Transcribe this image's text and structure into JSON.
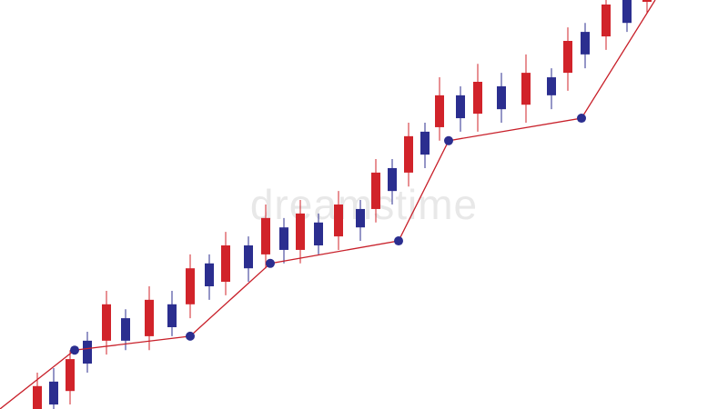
{
  "watermark": "dreamstime",
  "colors": {
    "up": "#d1232a",
    "down": "#2b2e8f",
    "trend_line": "#c8202a",
    "trend_point": "#2b2e8f"
  },
  "chart_data": {
    "type": "candlestick",
    "title": "",
    "xlabel": "",
    "ylabel": "",
    "ylim": [
      0,
      100
    ],
    "grid": false,
    "candles": [
      {
        "x": 41,
        "color": "up",
        "open": 0,
        "close": 5.6,
        "high": 8.9,
        "low": 0
      },
      {
        "x": 59,
        "color": "down",
        "open": 6.7,
        "close": 1.1,
        "high": 10,
        "low": 0
      },
      {
        "x": 77,
        "color": "up",
        "open": 4.4,
        "close": 12.2,
        "high": 14.4,
        "low": 1.1
      },
      {
        "x": 96,
        "color": "down",
        "open": 16.7,
        "close": 11.1,
        "high": 18.9,
        "low": 8.9
      },
      {
        "x": 117,
        "color": "up",
        "open": 16.7,
        "close": 25.6,
        "high": 28.9,
        "low": 13.3
      },
      {
        "x": 138,
        "color": "down",
        "open": 22.2,
        "close": 16.7,
        "high": 24.4,
        "low": 14.4
      },
      {
        "x": 164,
        "color": "up",
        "open": 17.8,
        "close": 26.7,
        "high": 30,
        "low": 14.4
      },
      {
        "x": 189,
        "color": "down",
        "open": 25.6,
        "close": 20,
        "high": 28.9,
        "low": 17.8
      },
      {
        "x": 209,
        "color": "up",
        "open": 25.6,
        "close": 34.4,
        "high": 37.8,
        "low": 22.2
      },
      {
        "x": 230,
        "color": "down",
        "open": 35.6,
        "close": 30,
        "high": 37.8,
        "low": 26.7
      },
      {
        "x": 248,
        "color": "up",
        "open": 31.1,
        "close": 40,
        "high": 43.3,
        "low": 27.8
      },
      {
        "x": 273,
        "color": "down",
        "open": 40,
        "close": 34.4,
        "high": 42.2,
        "low": 31.1
      },
      {
        "x": 292,
        "color": "up",
        "open": 37.8,
        "close": 46.7,
        "high": 50,
        "low": 34.4
      },
      {
        "x": 312,
        "color": "down",
        "open": 44.4,
        "close": 38.9,
        "high": 46.7,
        "low": 35.6
      },
      {
        "x": 330,
        "color": "up",
        "open": 38.9,
        "close": 47.8,
        "high": 51.1,
        "low": 35.6
      },
      {
        "x": 350,
        "color": "down",
        "open": 45.6,
        "close": 40,
        "high": 47.8,
        "low": 37.8
      },
      {
        "x": 372,
        "color": "up",
        "open": 42.2,
        "close": 50,
        "high": 53.3,
        "low": 38.9
      },
      {
        "x": 396,
        "color": "down",
        "open": 48.9,
        "close": 44.4,
        "high": 51.1,
        "low": 41.1
      },
      {
        "x": 413,
        "color": "up",
        "open": 48.9,
        "close": 57.8,
        "high": 61.1,
        "low": 45.6
      },
      {
        "x": 431,
        "color": "down",
        "open": 58.9,
        "close": 53.3,
        "high": 61.1,
        "low": 50
      },
      {
        "x": 449,
        "color": "up",
        "open": 57.8,
        "close": 66.7,
        "high": 70,
        "low": 54.4
      },
      {
        "x": 467,
        "color": "down",
        "open": 67.8,
        "close": 62.2,
        "high": 70,
        "low": 58.9
      },
      {
        "x": 483,
        "color": "up",
        "open": 68.9,
        "close": 76.7,
        "high": 81.1,
        "low": 65.6
      },
      {
        "x": 506,
        "color": "down",
        "open": 76.7,
        "close": 71.1,
        "high": 78.9,
        "low": 67.8
      },
      {
        "x": 525,
        "color": "up",
        "open": 72.2,
        "close": 80,
        "high": 84.4,
        "low": 67.8
      },
      {
        "x": 551,
        "color": "down",
        "open": 78.9,
        "close": 73.3,
        "high": 82.2,
        "low": 70
      },
      {
        "x": 578,
        "color": "up",
        "open": 74.4,
        "close": 82.2,
        "high": 86.7,
        "low": 70
      },
      {
        "x": 606,
        "color": "down",
        "open": 81.1,
        "close": 76.7,
        "high": 83.3,
        "low": 73.3
      },
      {
        "x": 624,
        "color": "up",
        "open": 82.2,
        "close": 90,
        "high": 93.3,
        "low": 77.8
      },
      {
        "x": 643,
        "color": "down",
        "open": 92.2,
        "close": 86.7,
        "high": 94.4,
        "low": 83.3
      },
      {
        "x": 666,
        "color": "up",
        "open": 91.1,
        "close": 98.9,
        "high": 100,
        "low": 87.8
      },
      {
        "x": 689,
        "color": "down",
        "open": 100,
        "close": 94.4,
        "high": 100,
        "low": 92.2
      },
      {
        "x": 711,
        "color": "up",
        "open": 100,
        "close": 100,
        "high": 100,
        "low": 96.7
      }
    ],
    "trend_line": [
      {
        "x": 0,
        "y": 0
      },
      {
        "x": 82,
        "y": 14.4
      },
      {
        "x": 209,
        "y": 17.8
      },
      {
        "x": 297,
        "y": 35.6
      },
      {
        "x": 438,
        "y": 41.1
      },
      {
        "x": 493,
        "y": 65.6
      },
      {
        "x": 639,
        "y": 71.1
      },
      {
        "x": 720,
        "y": 100
      }
    ],
    "trend_markers": [
      1,
      2,
      3,
      4,
      5,
      6
    ]
  }
}
